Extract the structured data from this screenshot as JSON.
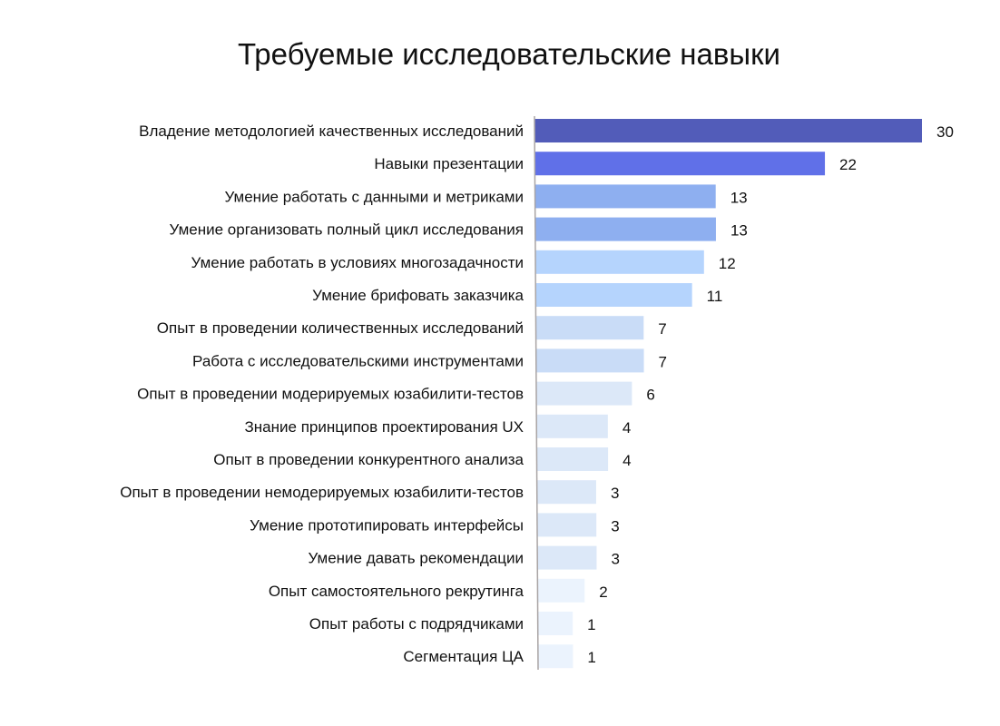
{
  "chart_data": {
    "type": "bar",
    "orientation": "horizontal",
    "title": "Требуемые исследовательские навыки",
    "xlabel": "",
    "ylabel": "",
    "grid": false,
    "categories": [
      "Владение методологией качественных исследований",
      "Навыки презентации",
      "Умение работать с данными и метриками",
      "Умение организовать полный цикл исследования",
      "Умение работать в условиях многозадачности",
      "Умение брифовать заказчика",
      "Опыт в проведении количественных исследований",
      "Работа с исследовательскими инструментами",
      "Опыт в проведении модерируемых юзабилити-тестов",
      "Знание принципов проектирования UX",
      "Опыт в проведении конкурентного анализа",
      "Опыт в проведении немодерируемых юзабилити-тестов",
      "Умение прототипировать интерфейсы",
      "Умение давать рекомендации",
      "Опыт самостоятельного рекрутинга",
      "Опыт работы с подрядчиками",
      "Сегментация ЦА"
    ],
    "values": [
      30,
      22,
      13,
      13,
      12,
      11,
      7,
      7,
      6,
      4,
      4,
      3,
      3,
      3,
      2,
      1,
      1
    ],
    "colors": [
      "#525cb9",
      "#6070e8",
      "#8eaff0",
      "#8eaff0",
      "#b5d4fd",
      "#b5d4fd",
      "#c9dcf7",
      "#c9dcf7",
      "#dce8f8",
      "#dce8f8",
      "#dce8f8",
      "#dce8f8",
      "#dce8f8",
      "#dce8f8",
      "#ebf3fd",
      "#ebf3fd",
      "#ebf3fd"
    ],
    "axis_color": "#a9a4a4"
  }
}
